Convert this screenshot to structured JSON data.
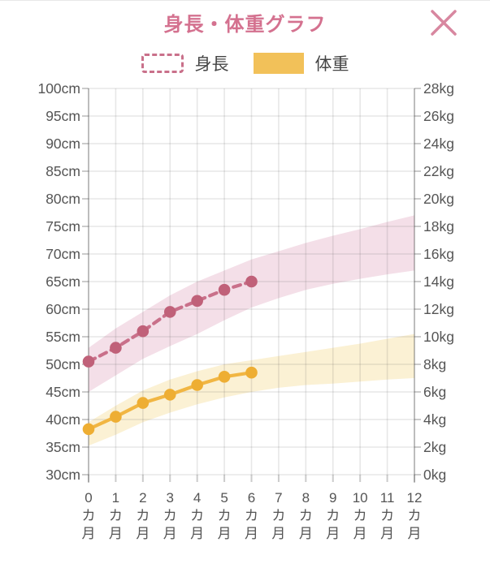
{
  "header": {
    "title": "身長・体重グラフ"
  },
  "close": {
    "label": "close"
  },
  "legend": {
    "height_label": "身長",
    "weight_label": "体重"
  },
  "colors": {
    "title": "#d4718f",
    "close_icon": "#d887a0",
    "height_line": "#c9708a",
    "height_point": "#c06179",
    "height_band": "#f4dfe8",
    "weight_line": "#f1b643",
    "weight_point": "#eeae33",
    "weight_band": "#fbf1d4",
    "axis_text": "#555555",
    "legend_text": "#444444"
  },
  "chart_data": {
    "type": "line",
    "title": "身長・体重グラフ",
    "x_tick_labels": [
      "0カ月",
      "1カ月",
      "2カ月",
      "3カ月",
      "4カ月",
      "5カ月",
      "6カ月",
      "7カ月",
      "8カ月",
      "9カ月",
      "10カ月",
      "11カ月",
      "12カ月"
    ],
    "left_axis": {
      "unit": "cm",
      "min": 30,
      "max": 100,
      "step": 5,
      "ticks": [
        "100cm",
        "95cm",
        "90cm",
        "85cm",
        "80cm",
        "75cm",
        "70cm",
        "65cm",
        "60cm",
        "55cm",
        "50cm",
        "45cm",
        "40cm",
        "35cm",
        "30cm"
      ]
    },
    "right_axis": {
      "unit": "kg",
      "min": 0,
      "max": 28,
      "step": 2,
      "ticks": [
        "28kg",
        "26kg",
        "24kg",
        "22kg",
        "20kg",
        "18kg",
        "16kg",
        "14kg",
        "12kg",
        "10kg",
        "8kg",
        "6kg",
        "4kg",
        "2kg",
        "0kg"
      ]
    },
    "grid": true,
    "legend_position": "top",
    "series": [
      {
        "name": "身長",
        "axis": "left",
        "unit": "cm",
        "style": "dashed",
        "color": "#c9708a",
        "point_color": "#c06179",
        "months": [
          0,
          1,
          2,
          3,
          4,
          5,
          6
        ],
        "values": [
          50.5,
          53,
          56,
          59.5,
          61.5,
          63.5,
          65
        ]
      },
      {
        "name": "体重",
        "axis": "right",
        "unit": "kg",
        "style": "solid",
        "color": "#f1b643",
        "point_color": "#eeae33",
        "months": [
          0,
          1,
          2,
          3,
          4,
          5,
          6
        ],
        "values": [
          3.3,
          4.2,
          5.2,
          5.8,
          6.5,
          7.1,
          7.4
        ]
      }
    ],
    "bands": [
      {
        "name": "height-normal-range",
        "axis": "left",
        "unit": "cm",
        "color": "#f4dfe8",
        "months": [
          0,
          1,
          2,
          3,
          4,
          5,
          6,
          7,
          8,
          9,
          10,
          11,
          12
        ],
        "upper": [
          53,
          56.5,
          59.5,
          62.5,
          65,
          67,
          69,
          70.5,
          72,
          73.3,
          74.5,
          75.8,
          77
        ],
        "lower": [
          45,
          48,
          51,
          53.3,
          55.5,
          58,
          60.3,
          62,
          63.5,
          64.6,
          65.5,
          66.3,
          67
        ]
      },
      {
        "name": "weight-normal-range",
        "axis": "right",
        "unit": "kg",
        "color": "#fbf1d4",
        "months": [
          0,
          1,
          2,
          3,
          4,
          5,
          6,
          7,
          8,
          9,
          10,
          11,
          12
        ],
        "upper": [
          3.8,
          5.0,
          6.1,
          6.9,
          7.5,
          8.0,
          8.3,
          8.6,
          8.9,
          9.2,
          9.5,
          9.85,
          10.2
        ],
        "lower": [
          2.1,
          2.9,
          3.8,
          4.5,
          5.1,
          5.6,
          6.0,
          6.3,
          6.5,
          6.6,
          6.75,
          6.9,
          7.0
        ]
      }
    ]
  }
}
